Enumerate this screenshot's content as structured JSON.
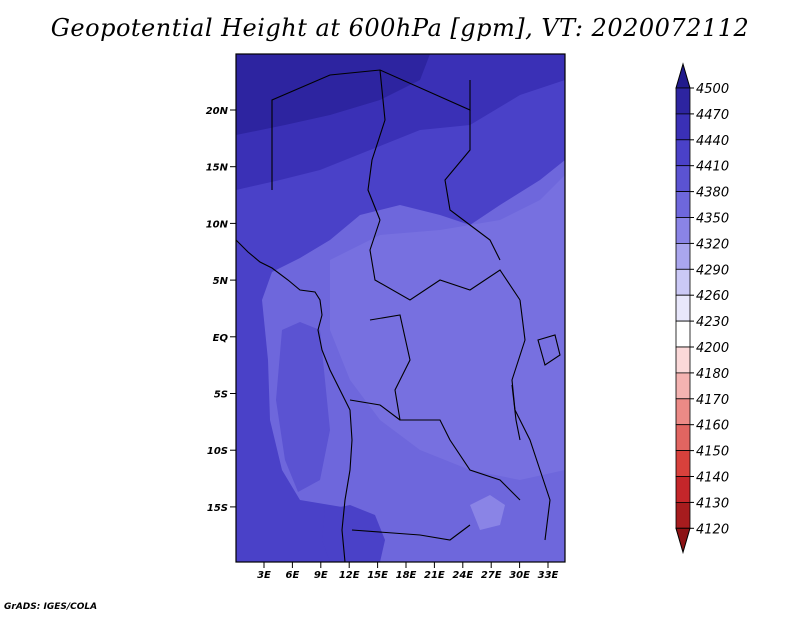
{
  "title": "Geopotential Height at 600hPa [gpm], VT: 2020072112",
  "credit": "GrADS: IGES/COLA",
  "map": {
    "lat_labels": [
      "20N",
      "15N",
      "10N",
      "5N",
      "EQ",
      "5S",
      "10S",
      "15S"
    ],
    "lon_labels": [
      "3E",
      "6E",
      "9E",
      "12E",
      "15E",
      "18E",
      "21E",
      "24E",
      "27E",
      "30E",
      "33E"
    ]
  },
  "colorbar": {
    "levels": [
      "4500",
      "4470",
      "4440",
      "4410",
      "4380",
      "4350",
      "4320",
      "4290",
      "4260",
      "4230",
      "4200",
      "4180",
      "4170",
      "4160",
      "4150",
      "4140",
      "4130",
      "4120"
    ],
    "colors": [
      "#211a8c",
      "#2d24a0",
      "#3a30b6",
      "#4a41c8",
      "#5b53d2",
      "#6e67dc",
      "#8a84e6",
      "#aaa6ee",
      "#cbc9f6",
      "#e8e7fb",
      "#ffffff",
      "#fbd9d9",
      "#f4b3b1",
      "#ec8a86",
      "#e16561",
      "#d8413c",
      "#c4262a",
      "#a71c1e",
      "#8c1214"
    ]
  }
}
